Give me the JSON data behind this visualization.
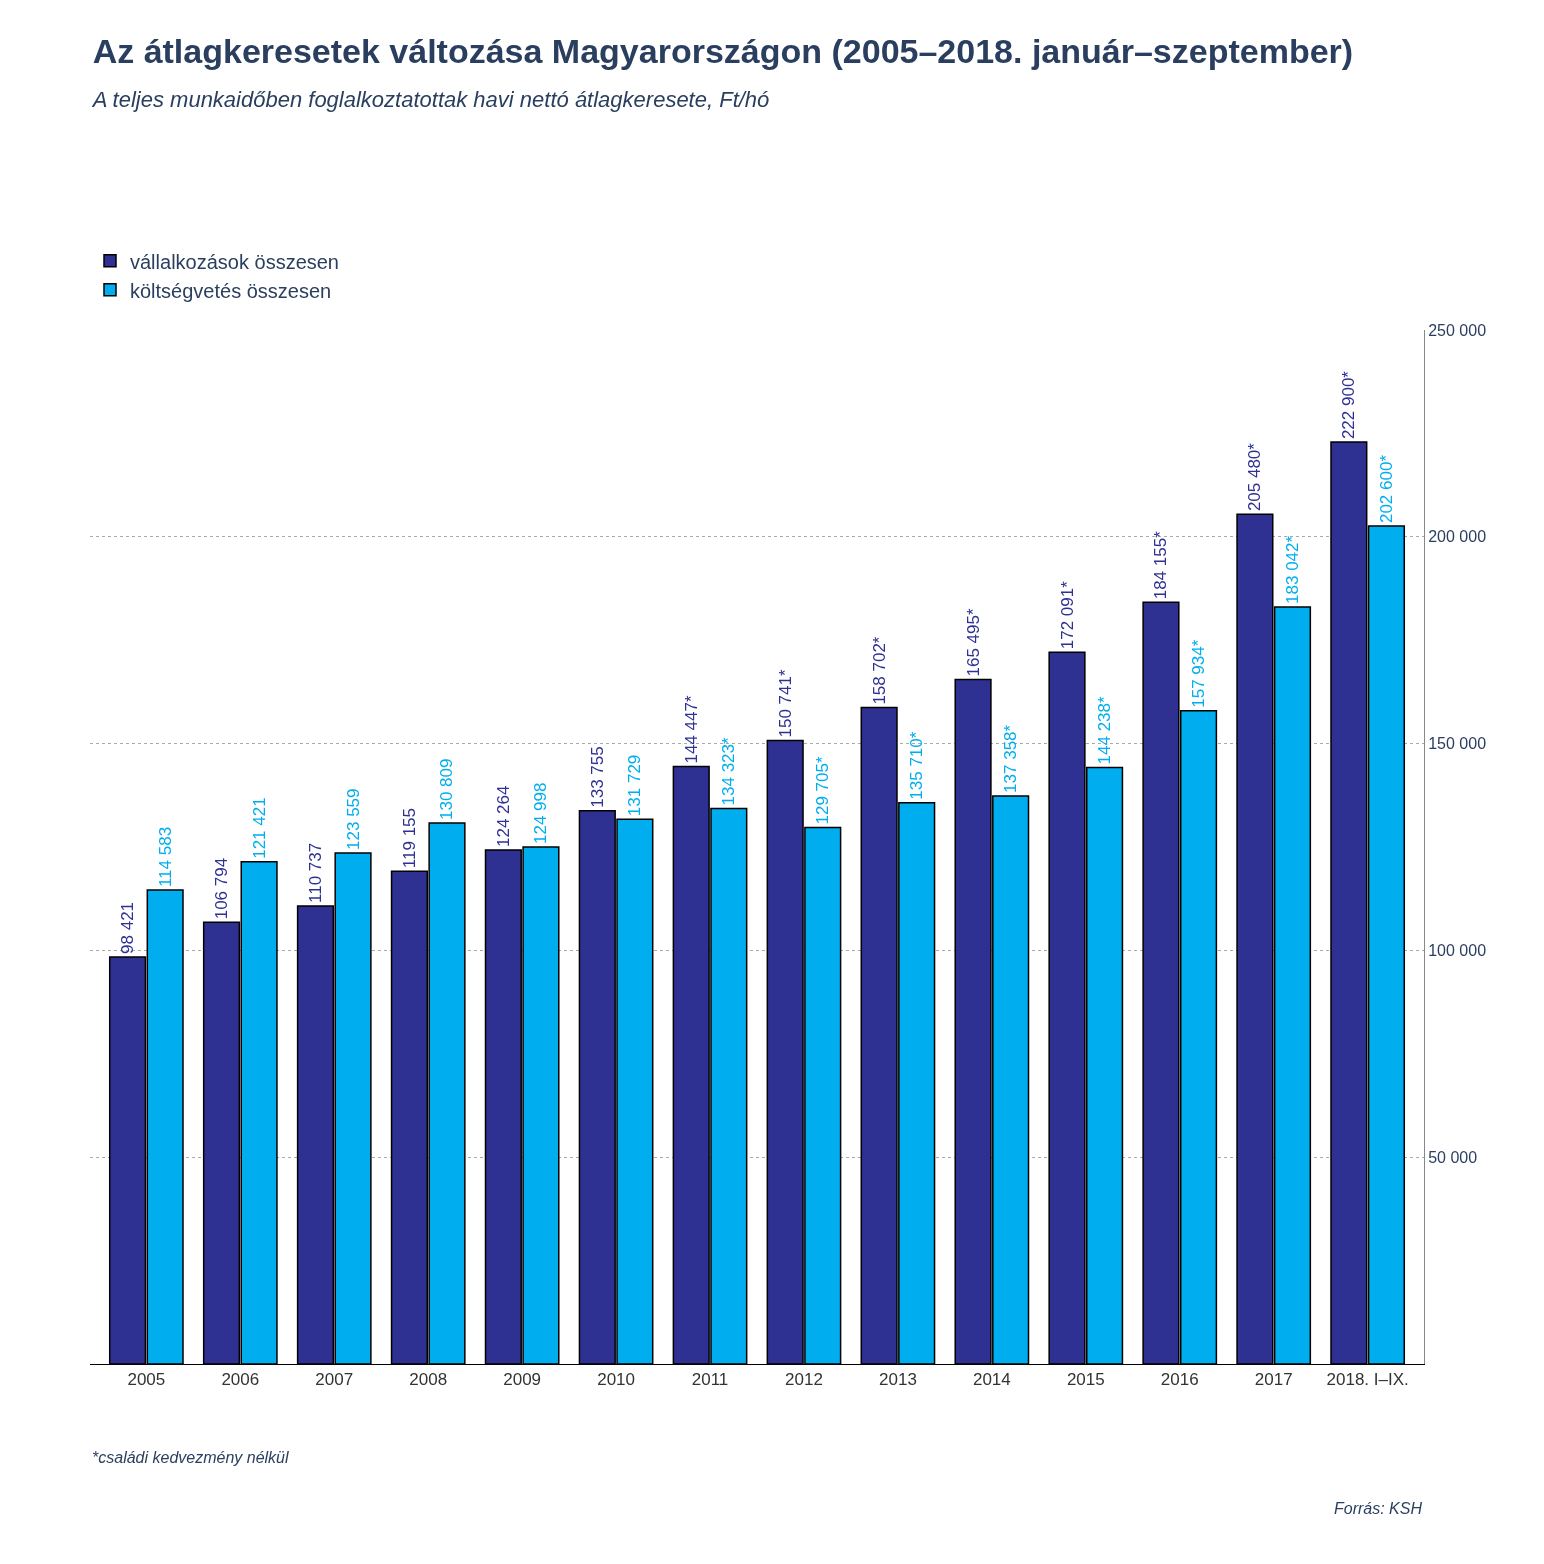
{
  "chart_data": {
    "type": "bar",
    "title": "Az átlagkeresetek változása Magyarországon (2005–2018. január–szeptember)",
    "subtitle": "A teljes munkaidőben foglalkoztatottak havi nettó átlagkeresete, Ft/hó",
    "categories": [
      "2005",
      "2006",
      "2007",
      "2008",
      "2009",
      "2010",
      "2011",
      "2012",
      "2013",
      "2014",
      "2015",
      "2016",
      "2017",
      "2018. I–IX."
    ],
    "series": [
      {
        "name": "vállalkozások összesen",
        "color": "#2e3192",
        "values": [
          98421,
          106794,
          110737,
          119155,
          124264,
          133755,
          144447,
          150741,
          158702,
          165495,
          172091,
          184155,
          205480,
          222900
        ],
        "value_labels": [
          "98 421",
          "106 794",
          "110 737",
          "119 155",
          "124 264",
          "133 755",
          "144 447*",
          "150 741*",
          "158 702*",
          "165 495*",
          "172 091*",
          "184 155*",
          "205 480*",
          "222 900*"
        ]
      },
      {
        "name": "költségvetés összesen",
        "color": "#00aeef",
        "values": [
          114583,
          121421,
          123559,
          130809,
          124998,
          131729,
          134323,
          129705,
          135710,
          137358,
          144238,
          157934,
          183042,
          202600
        ],
        "value_labels": [
          "114 583",
          "121 421",
          "123 559",
          "130 809",
          "124 998",
          "131 729",
          "134 323*",
          "129 705*",
          "135 710*",
          "137 358*",
          "144 238*",
          "157 934*",
          "183 042*",
          "202 600*"
        ]
      }
    ],
    "ylim": [
      0,
      250000
    ],
    "yticks": [
      {
        "value": 50000,
        "label": "50 000"
      },
      {
        "value": 100000,
        "label": "100 000"
      },
      {
        "value": 150000,
        "label": "150 000"
      },
      {
        "value": 200000,
        "label": "200 000"
      },
      {
        "value": 250000,
        "label": "250 000"
      }
    ],
    "grid": "y",
    "legend": "top left",
    "annotations": [
      "*családi kedvezmény nélkül",
      "Forrás: KSH"
    ]
  }
}
